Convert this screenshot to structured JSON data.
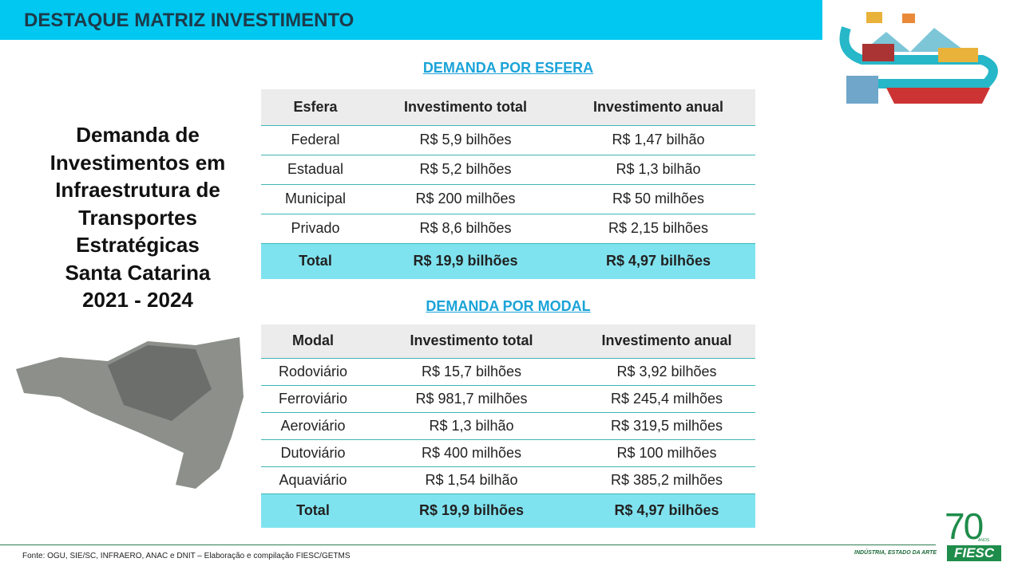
{
  "header": {
    "title": "DESTAQUE MATRIZ INVESTIMENTO"
  },
  "side_title": [
    "Demanda de",
    "Investimentos em",
    "Infraestrutura de",
    "Transportes",
    "Estratégicas",
    "Santa Catarina",
    "2021 - 2024"
  ],
  "tables": [
    {
      "title": "DEMANDA POR ESFERA",
      "columns": [
        "Esfera",
        "Investimento total",
        "Investimento anual"
      ],
      "rows": [
        [
          "Federal",
          "R$ 5,9 bilhões",
          "R$ 1,47 bilhão"
        ],
        [
          "Estadual",
          "R$ 5,2 bilhões",
          "R$ 1,3 bilhão"
        ],
        [
          "Municipal",
          "R$ 200 milhões",
          "R$ 50 milhões"
        ],
        [
          "Privado",
          "R$ 8,6 bilhões",
          "R$ 2,15 bilhões"
        ]
      ],
      "total": [
        "Total",
        "R$ 19,9 bilhões",
        "R$ 4,97 bilhões"
      ]
    },
    {
      "title": "DEMANDA POR MODAL",
      "columns": [
        "Modal",
        "Investimento total",
        "Investimento anual"
      ],
      "rows": [
        [
          "Rodoviário",
          "R$ 15,7 bilhões",
          "R$ 3,92 bilhões"
        ],
        [
          "Ferroviário",
          "R$ 981,7 milhões",
          "R$ 245,4 milhões"
        ],
        [
          "Aeroviário",
          "R$ 1,3 bilhão",
          "R$ 319,5 milhões"
        ],
        [
          "Dutoviário",
          "R$ 400 milhões",
          "R$ 100 milhões"
        ],
        [
          "Aquaviário",
          "R$ 1,54 bilhão",
          "R$ 385,2 milhões"
        ]
      ],
      "total": [
        "Total",
        "R$ 19,9 bilhões",
        "R$ 4,97 bilhões"
      ]
    }
  ],
  "footer": {
    "source": "Fonte: OGU, SIE/SC, INFRAERO, ANAC e DNIT – Elaboração e compilação FIESC/GETMS",
    "tagline": "INDÚSTRIA, ESTADO DA ARTE"
  },
  "logo": {
    "number": "70",
    "sub": "ANOS",
    "name": "FIESC"
  }
}
